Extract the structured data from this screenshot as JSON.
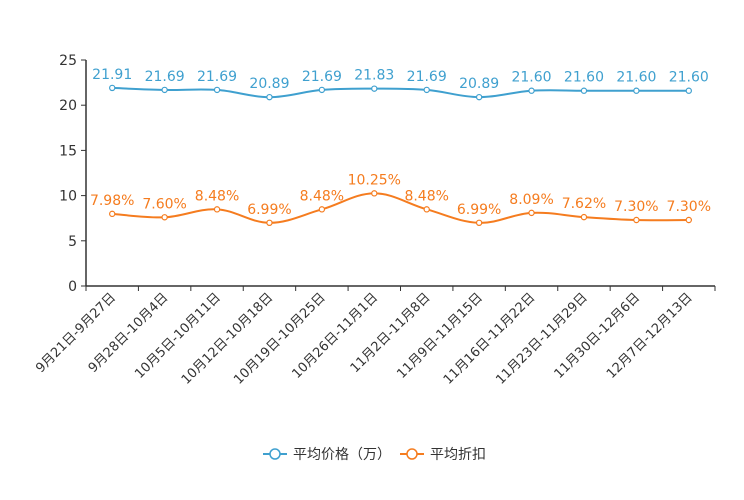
{
  "chart_data": {
    "type": "line",
    "title": "",
    "xlabel": "",
    "ylabel": "",
    "ylim": [
      0,
      25
    ],
    "yticks": [
      0,
      5,
      10,
      15,
      20,
      25
    ],
    "grid": false,
    "legend_position": "bottom-center",
    "categories": [
      "9月21日-9月27日",
      "9月28日-10月4日",
      "10月5日-10月11日",
      "10月12日-10月18日",
      "10月19日-10月25日",
      "10月26日-11月1日",
      "11月2日-11月8日",
      "11月9日-11月15日",
      "11月16日-11月22日",
      "11月23日-11月29日",
      "11月30日-12月6日",
      "12月7日-12月13日"
    ],
    "series": [
      {
        "name": "平均价格（万）",
        "color": "#3fa0cf",
        "values": [
          21.91,
          21.69,
          21.69,
          20.89,
          21.69,
          21.83,
          21.69,
          20.89,
          21.6,
          21.6,
          21.6,
          21.6
        ],
        "labels": [
          "21.91",
          "21.69",
          "21.69",
          "20.89",
          "21.69",
          "21.83",
          "21.69",
          "20.89",
          "21.60",
          "21.60",
          "21.60",
          "21.60"
        ]
      },
      {
        "name": "平均折扣",
        "color": "#f57c1f",
        "values": [
          7.98,
          7.6,
          8.48,
          6.99,
          8.48,
          10.25,
          8.48,
          6.99,
          8.09,
          7.62,
          7.3,
          7.3
        ],
        "labels": [
          "7.98%",
          "7.60%",
          "8.48%",
          "6.99%",
          "8.48%",
          "10.25%",
          "8.48%",
          "6.99%",
          "8.09%",
          "7.62%",
          "7.30%",
          "7.30%"
        ]
      }
    ]
  }
}
